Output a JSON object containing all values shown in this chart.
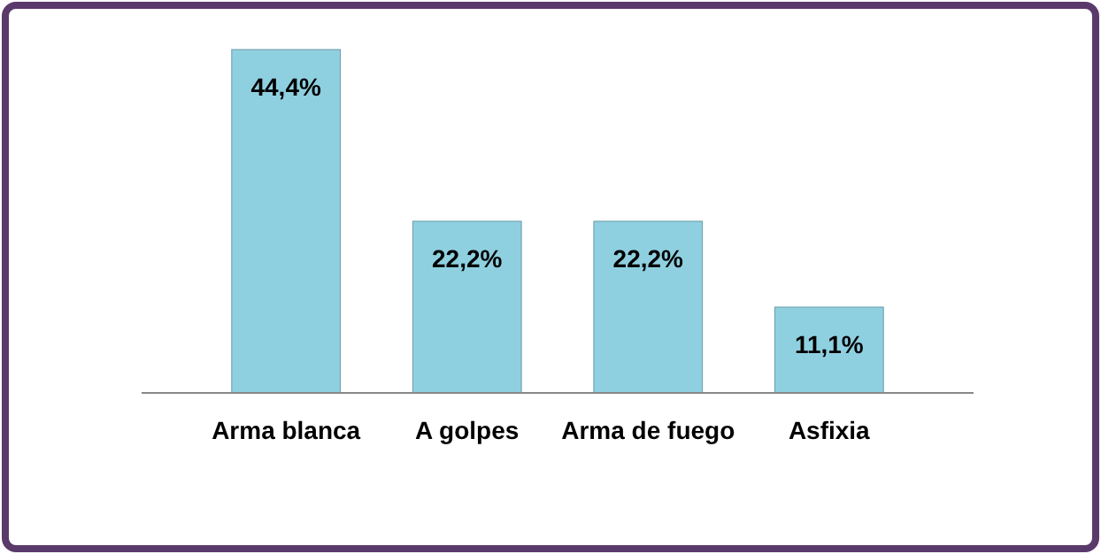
{
  "chart_data": {
    "type": "bar",
    "categories": [
      "Arma blanca",
      "A golpes",
      "Arma de fuego",
      "Asfixia"
    ],
    "values": [
      44.4,
      22.2,
      22.2,
      11.1
    ],
    "value_labels": [
      "44,4%",
      "22,2%",
      "22,2%",
      "11,1%"
    ],
    "color": "#8fd0e0"
  }
}
